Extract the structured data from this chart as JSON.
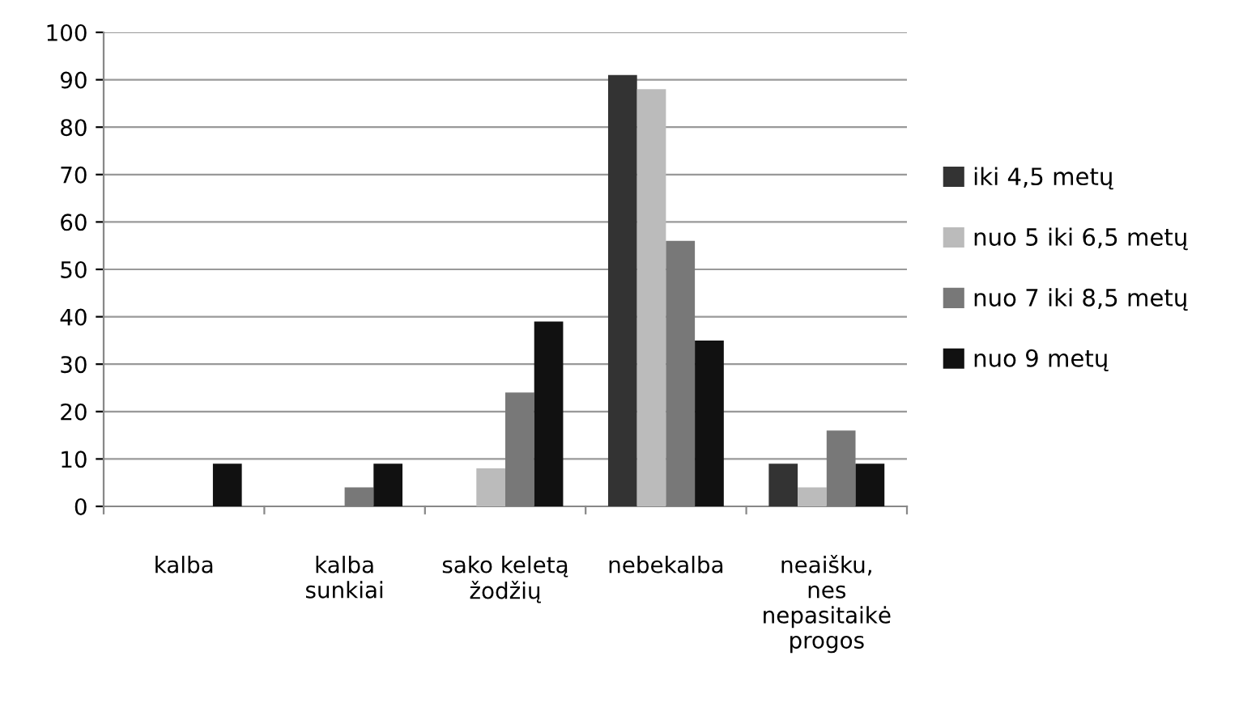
{
  "chart_data": {
    "type": "bar",
    "categories": [
      "kalba",
      "kalba\nsunkiai",
      "sako keletą\nžodžių",
      "nebekalba",
      "neaišku,\nnes\nnepasitaikė\nprogos"
    ],
    "series": [
      {
        "name": "iki 4,5 metų",
        "color": "#333333",
        "values": [
          0,
          0,
          0,
          91,
          9
        ]
      },
      {
        "name": "nuo 5 iki 6,5 metų",
        "color": "#bbbbbb",
        "values": [
          0,
          0,
          8,
          88,
          4
        ]
      },
      {
        "name": "nuo 7 iki 8,5 metų",
        "color": "#787878",
        "values": [
          0,
          4,
          24,
          56,
          16
        ]
      },
      {
        "name": "nuo 9 metų",
        "color": "#111111",
        "values": [
          9,
          9,
          39,
          35,
          9
        ]
      }
    ],
    "ylim": [
      0,
      100
    ],
    "yticks": [
      0,
      10,
      20,
      30,
      40,
      50,
      60,
      70,
      80,
      90,
      100
    ],
    "grid": "y",
    "legend": "right"
  }
}
